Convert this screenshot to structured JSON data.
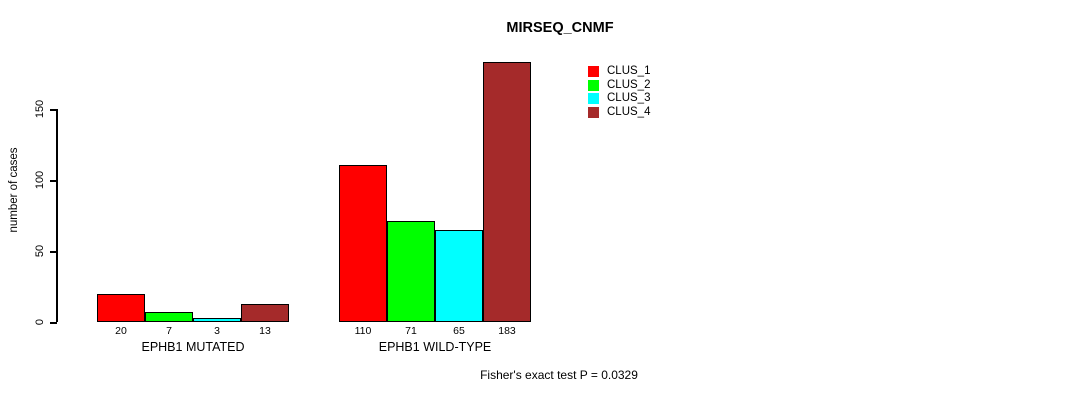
{
  "chart_data": {
    "type": "bar",
    "title": "MIRSEQ_CNMF",
    "ylabel": "number of cases",
    "xlabel": "",
    "categories": [
      "EPHB1 MUTATED",
      "EPHB1 WILD-TYPE"
    ],
    "series": [
      {
        "name": "CLUS_1",
        "color": "#FF0000",
        "values": [
          20,
          110
        ]
      },
      {
        "name": "CLUS_2",
        "color": "#00FF00",
        "values": [
          7,
          71
        ]
      },
      {
        "name": "CLUS_3",
        "color": "#00FFFF",
        "values": [
          3,
          65
        ]
      },
      {
        "name": "CLUS_4",
        "color": "#A52A2A",
        "values": [
          13,
          183
        ]
      }
    ],
    "yticks": [
      0,
      50,
      100,
      150
    ],
    "ylim": [
      0,
      185
    ],
    "grid": false,
    "bar_value_labels_shown": true,
    "legend_position": "top-right",
    "annotation": "Fisher's exact test P = 0.0329"
  }
}
